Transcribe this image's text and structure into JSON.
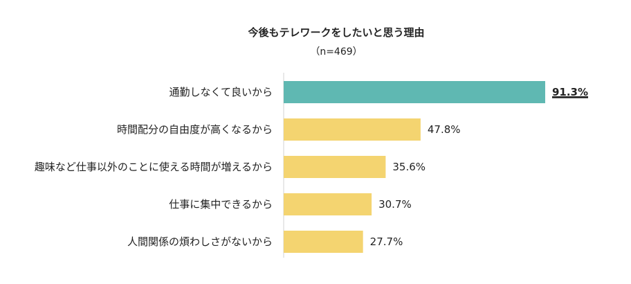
{
  "chart_data": {
    "type": "bar",
    "orientation": "horizontal",
    "title": "今後もテレワークをしたいと思う理由",
    "subtitle": "（n=469）",
    "categories": [
      "通勤しなくて良いから",
      "時間配分の自由度が高くなるから",
      "趣味など仕事以外のことに使える時間が増えるから",
      "仕事に集中できるから",
      "人間関係の煩わしさがないから"
    ],
    "values": [
      91.3,
      47.8,
      35.6,
      30.7,
      27.7
    ],
    "value_labels": [
      "91.3%",
      "47.8%",
      "35.6%",
      "30.7%",
      "27.7%"
    ],
    "highlight_index": 0,
    "xlim": [
      0,
      100
    ],
    "grid": false,
    "colors": {
      "highlight": "#5fb8b2",
      "default": "#f4d470",
      "axis": "#d0d0d0"
    }
  }
}
